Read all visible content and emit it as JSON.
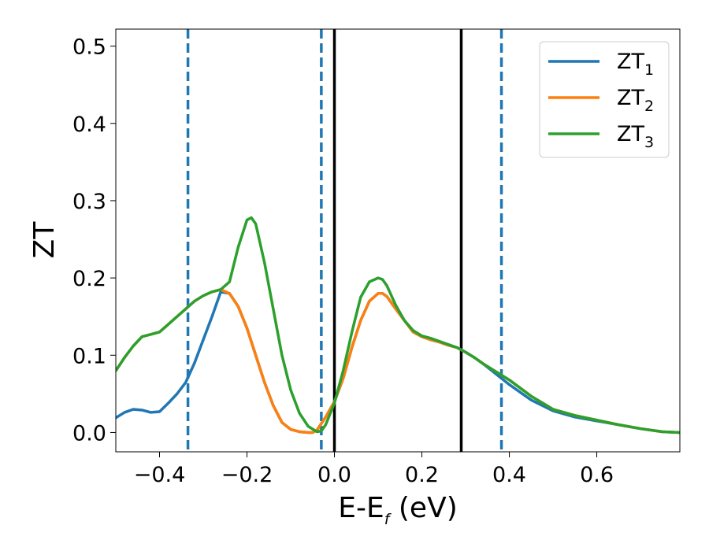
{
  "chart_data": {
    "type": "line",
    "title": "",
    "xlabel": {
      "main": "E-E",
      "sub": "f",
      "unit": " (eV)"
    },
    "ylabel": "ZT",
    "xlim": [
      -0.5,
      0.79
    ],
    "ylim": [
      -0.025,
      0.522
    ],
    "xticks": [
      -0.4,
      -0.2,
      0.0,
      0.2,
      0.4,
      0.6
    ],
    "xtick_labels": [
      "−0.4",
      "−0.2",
      "0.0",
      "0.2",
      "0.4",
      "0.6"
    ],
    "yticks": [
      0.0,
      0.1,
      0.2,
      0.3,
      0.4,
      0.5
    ],
    "ytick_labels": [
      "0.0",
      "0.1",
      "0.2",
      "0.3",
      "0.4",
      "0.5"
    ],
    "grid": false,
    "legend_position": "top-right",
    "series": [
      {
        "name": "ZT",
        "name_sub": "1",
        "color": "#1f77b4",
        "x": [
          -0.5,
          -0.48,
          -0.46,
          -0.44,
          -0.42,
          -0.4,
          -0.38,
          -0.36,
          -0.34,
          -0.32,
          -0.3,
          -0.28,
          -0.26,
          -0.24,
          -0.22,
          -0.2,
          -0.18,
          -0.16,
          -0.14,
          -0.12,
          -0.1,
          -0.08,
          -0.06,
          -0.05,
          -0.04,
          -0.02,
          0.0,
          0.02,
          0.04,
          0.06,
          0.08,
          0.1,
          0.11,
          0.12,
          0.14,
          0.16,
          0.18,
          0.2,
          0.22,
          0.24,
          0.26,
          0.28,
          0.3,
          0.32,
          0.34,
          0.36,
          0.38,
          0.4,
          0.45,
          0.5,
          0.55,
          0.6,
          0.65,
          0.7,
          0.75,
          0.79
        ],
        "y": [
          0.019,
          0.026,
          0.03,
          0.029,
          0.026,
          0.027,
          0.038,
          0.05,
          0.065,
          0.09,
          0.12,
          0.15,
          0.182,
          0.18,
          0.163,
          0.135,
          0.1,
          0.065,
          0.035,
          0.013,
          0.004,
          0.001,
          0.0,
          0.0,
          0.003,
          0.02,
          0.04,
          0.07,
          0.11,
          0.145,
          0.17,
          0.18,
          0.18,
          0.176,
          0.16,
          0.145,
          0.13,
          0.124,
          0.12,
          0.117,
          0.113,
          0.11,
          0.104,
          0.097,
          0.089,
          0.08,
          0.071,
          0.062,
          0.042,
          0.028,
          0.02,
          0.015,
          0.01,
          0.005,
          0.001,
          0.0
        ]
      },
      {
        "name": "ZT",
        "name_sub": "2",
        "color": "#ff7f0e",
        "x": [
          -0.5,
          -0.48,
          -0.46,
          -0.44,
          -0.42,
          -0.4,
          -0.38,
          -0.36,
          -0.34,
          -0.32,
          -0.3,
          -0.28,
          -0.26,
          -0.24,
          -0.22,
          -0.2,
          -0.18,
          -0.16,
          -0.14,
          -0.12,
          -0.1,
          -0.08,
          -0.06,
          -0.05,
          -0.04,
          -0.02,
          0.0,
          0.02,
          0.04,
          0.06,
          0.08,
          0.1,
          0.11,
          0.12,
          0.14,
          0.16,
          0.18,
          0.2,
          0.22,
          0.24,
          0.26,
          0.28,
          0.3,
          0.32,
          0.34,
          0.36,
          0.38,
          0.4,
          0.45,
          0.5,
          0.55,
          0.6,
          0.65,
          0.7,
          0.75,
          0.79
        ],
        "y": [
          0.08,
          0.097,
          0.112,
          0.124,
          0.127,
          0.13,
          0.14,
          0.15,
          0.16,
          0.17,
          0.177,
          0.182,
          0.185,
          0.18,
          0.163,
          0.135,
          0.1,
          0.065,
          0.035,
          0.013,
          0.004,
          0.001,
          0.0,
          0.0,
          0.003,
          0.02,
          0.04,
          0.07,
          0.11,
          0.145,
          0.17,
          0.18,
          0.18,
          0.176,
          0.16,
          0.145,
          0.13,
          0.124,
          0.12,
          0.117,
          0.113,
          0.11,
          0.104,
          0.097,
          0.089,
          0.082,
          0.075,
          0.068,
          0.047,
          0.03,
          0.022,
          0.016,
          0.01,
          0.005,
          0.001,
          0.0
        ]
      },
      {
        "name": "ZT",
        "name_sub": "3",
        "color": "#2ca02c",
        "x": [
          -0.5,
          -0.48,
          -0.46,
          -0.44,
          -0.42,
          -0.4,
          -0.38,
          -0.36,
          -0.34,
          -0.32,
          -0.3,
          -0.28,
          -0.26,
          -0.24,
          -0.22,
          -0.2,
          -0.19,
          -0.18,
          -0.16,
          -0.14,
          -0.12,
          -0.1,
          -0.08,
          -0.06,
          -0.04,
          -0.03,
          -0.02,
          0.0,
          0.02,
          0.04,
          0.06,
          0.08,
          0.1,
          0.11,
          0.12,
          0.14,
          0.16,
          0.18,
          0.2,
          0.22,
          0.24,
          0.26,
          0.28,
          0.3,
          0.32,
          0.34,
          0.36,
          0.38,
          0.4,
          0.45,
          0.5,
          0.55,
          0.6,
          0.65,
          0.7,
          0.75,
          0.79
        ],
        "y": [
          0.08,
          0.097,
          0.112,
          0.124,
          0.127,
          0.13,
          0.14,
          0.15,
          0.16,
          0.17,
          0.177,
          0.182,
          0.185,
          0.195,
          0.24,
          0.275,
          0.278,
          0.27,
          0.22,
          0.16,
          0.1,
          0.055,
          0.025,
          0.008,
          0.001,
          0.002,
          0.01,
          0.038,
          0.08,
          0.13,
          0.175,
          0.195,
          0.2,
          0.198,
          0.19,
          0.165,
          0.145,
          0.132,
          0.125,
          0.122,
          0.118,
          0.114,
          0.11,
          0.104,
          0.097,
          0.089,
          0.082,
          0.075,
          0.068,
          0.047,
          0.03,
          0.022,
          0.016,
          0.01,
          0.005,
          0.001,
          0.0
        ]
      }
    ],
    "vertical_lines": [
      {
        "x": -0.335,
        "style": "dashed",
        "color": "#1f77b4"
      },
      {
        "x": -0.03,
        "style": "dashed",
        "color": "#1f77b4"
      },
      {
        "x": 0.0,
        "style": "solid",
        "color": "#000000"
      },
      {
        "x": 0.29,
        "style": "solid",
        "color": "#000000"
      },
      {
        "x": 0.382,
        "style": "dashed",
        "color": "#1f77b4"
      }
    ]
  }
}
